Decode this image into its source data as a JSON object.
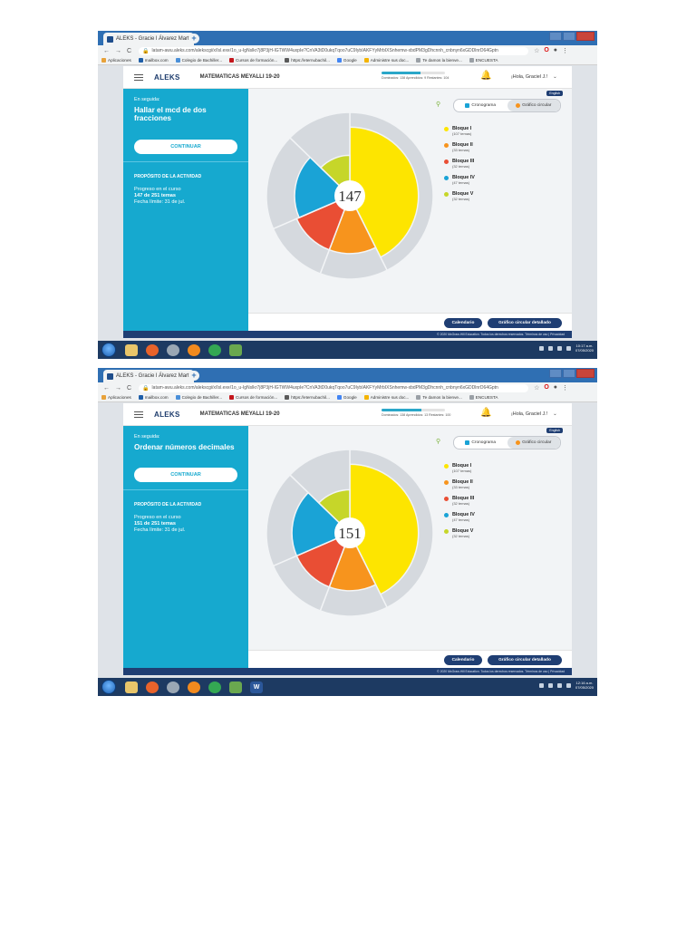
{
  "screens": [
    {
      "browser": {
        "tab_title": "ALEKS - Gracie l Álvarez Martín",
        "url": "latam-awu.aleks.com/alekscgi/x/Isl.exe/1o_u-IgNslkr7j8P3jH-lGTWW4uxpIe?CnVA3tD0ukqTqoo7uC9IybIAKFYyMrbIXSnhemw-xbdPM3gDhcnnh_cnbnyn6xGDDlnrD64Gptn",
        "bookmarks": [
          {
            "label": "Aplicaciones",
            "color": "#e8a23a"
          },
          {
            "label": "mailbox.com",
            "color": "#1f5fa8"
          },
          {
            "label": "Colegio de Bachiller...",
            "color": "#4a90d9"
          },
          {
            "label": "Cursos de formación...",
            "color": "#c4161c"
          },
          {
            "label": "https://eternubachil...",
            "color": "#5a5a5a"
          },
          {
            "label": "Google",
            "color": "#4285f4"
          },
          {
            "label": "Administre sus doc...",
            "color": "#f4b400"
          },
          {
            "label": "Te damos la bienve...",
            "color": "#9aa0a6"
          },
          {
            "label": "ENCUESTA",
            "color": "#9aa0a6"
          }
        ]
      },
      "app": {
        "logo": "ALEKS",
        "course": "MATEMATICAS MEYALLI 19-20",
        "progress_summary": {
          "dominados": 138,
          "aprendidos": 9,
          "restantes": 104
        },
        "progress_label": "Dominados: 138  Aprendidos: 9  Restantes: 104",
        "user": "¡Hola, Graciel J.!",
        "eyebrow": "En seguida:",
        "next_topic": "Hallar el mcd de dos fracciones",
        "continue_label": "CONTINUAR",
        "purpose_title": "PROPÓSITO DE LA ACTIVIDAD",
        "progress_course_label": "Progreso en el curso",
        "progress_course_value": "147 de 251 temas",
        "deadline": "Fecha límite: 31 de jul.",
        "lang": "English",
        "toggle_cronograma": "Cronograma",
        "toggle_circular": "Gráfico circular",
        "calendar_btn": "Calendario",
        "detailed_btn": "Gráfico circular detallado",
        "copyright": "© 2020 McGraw-Hill Education. Todos los derechos reservados.  Términos de uso  |  Privacidad"
      },
      "taskbar": {
        "time": "10:17 a.m.",
        "date": "07/05/2020"
      },
      "chart_data": {
        "type": "pie",
        "center_label": "147",
        "categories": [
          "Bloque I",
          "Bloque II",
          "Bloque III",
          "Bloque IV",
          "Bloque V"
        ],
        "colors": [
          "#fde500",
          "#f7941d",
          "#e94e34",
          "#1aa3d6",
          "#c6d629"
        ],
        "totals": [
          107,
          33,
          32,
          47,
          32
        ],
        "sublabels": [
          "(107 temas)",
          "(33 temas)",
          "(32 temas)",
          "(47 temas)",
          "(32 temas)"
        ],
        "mastered_fraction": [
          0.78,
          0.62,
          0.62,
          0.58,
          0.36
        ]
      }
    },
    {
      "browser": {
        "tab_title": "ALEKS - Gracie l Álvarez Martín",
        "url": "latam-awu.aleks.com/alekscgi/x/Isl.exe/1o_u-IgNslkr7j8P3jH-lGTWW4uxpIe?CnVA3tD0ukqTqoo7uC9IybIAKFYyMrbIXSnhemw-xbdPM3gDhcnnh_cnbnyn6xGDDlnrD64Gptn",
        "bookmarks": [
          {
            "label": "Aplicaciones",
            "color": "#e8a23a"
          },
          {
            "label": "mailbox.com",
            "color": "#1f5fa8"
          },
          {
            "label": "Colegio de Bachiller...",
            "color": "#4a90d9"
          },
          {
            "label": "Cursos de formación...",
            "color": "#c4161c"
          },
          {
            "label": "https://eternubachil...",
            "color": "#5a5a5a"
          },
          {
            "label": "Google",
            "color": "#4285f4"
          },
          {
            "label": "Administre sus doc...",
            "color": "#f4b400"
          },
          {
            "label": "Te damos la bienve...",
            "color": "#9aa0a6"
          },
          {
            "label": "ENCUESTA",
            "color": "#9aa0a6"
          }
        ]
      },
      "app": {
        "logo": "ALEKS",
        "course": "MATEMATICAS MEYALLI 19-20",
        "progress_summary": {
          "dominados": 138,
          "aprendidos": 13,
          "restantes": 100
        },
        "progress_label": "Dominados: 138  Aprendidos: 13  Restantes: 100",
        "user": "¡Hola, Graciel J.!",
        "eyebrow": "En seguida:",
        "next_topic": "Ordenar números decimales",
        "continue_label": "CONTINUAR",
        "purpose_title": "PROPÓSITO DE LA ACTIVIDAD",
        "progress_course_label": "Progreso en el curso",
        "progress_course_value": "151 de 251 temas",
        "deadline": "Fecha límite: 31 de jul.",
        "lang": "English",
        "toggle_cronograma": "Cronograma",
        "toggle_circular": "Gráfico circular",
        "calendar_btn": "Calendario",
        "detailed_btn": "Gráfico circular detallado",
        "copyright": "© 2020 McGraw-Hill Education. Todos los derechos reservados.  Términos de uso  |  Privacidad"
      },
      "taskbar": {
        "time": "12:16 a.m.",
        "date": "07/05/2020"
      },
      "chart_data": {
        "type": "pie",
        "center_label": "151",
        "categories": [
          "Bloque I",
          "Bloque II",
          "Bloque III",
          "Bloque IV",
          "Bloque V"
        ],
        "colors": [
          "#fde500",
          "#f7941d",
          "#e94e34",
          "#1aa3d6",
          "#c6d629"
        ],
        "totals": [
          107,
          33,
          32,
          47,
          32
        ],
        "sublabels": [
          "(107 temas)",
          "(33 temas)",
          "(32 temas)",
          "(47 temas)",
          "(32 temas)"
        ],
        "mastered_fraction": [
          0.78,
          0.62,
          0.62,
          0.62,
          0.4
        ]
      }
    }
  ]
}
